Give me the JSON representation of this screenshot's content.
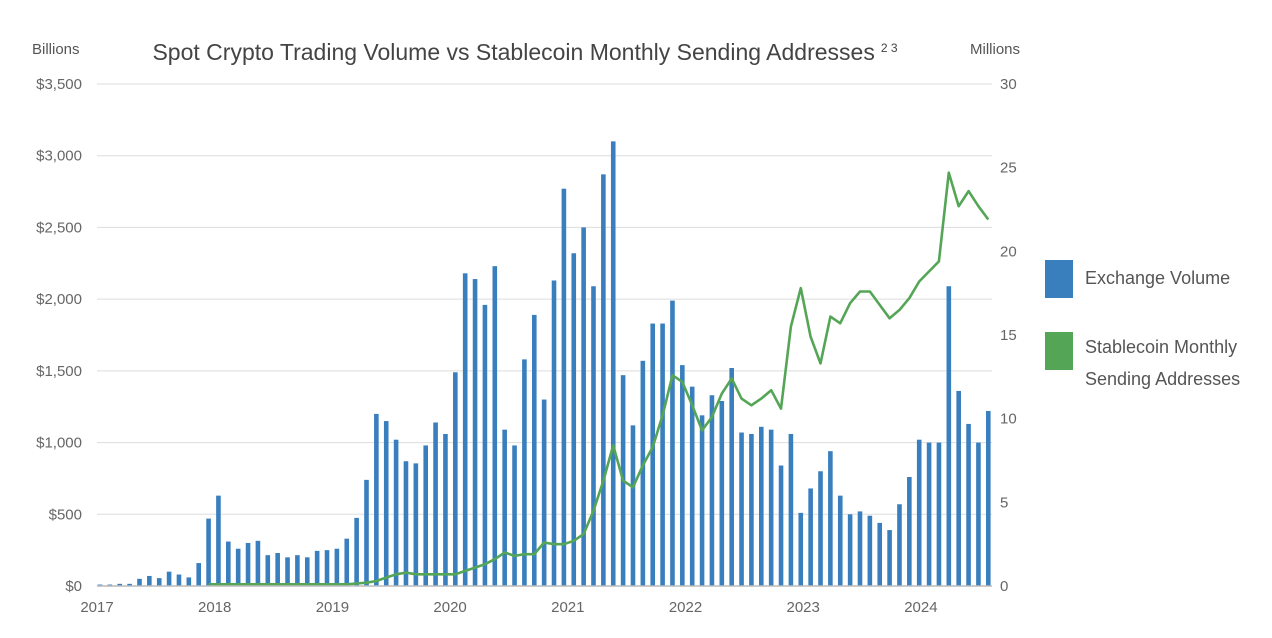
{
  "chart_data": {
    "type": "bar+line",
    "title": "Spot Crypto Trading Volume vs Stablecoin Monthly Sending Addresses",
    "title_superscript": "2 3",
    "left_axis": {
      "unit_label": "Billions",
      "ylim": [
        0,
        3500
      ],
      "ticks": [
        "$0",
        "$500",
        "$1,000",
        "$1,500",
        "$2,000",
        "$2,500",
        "$3,000",
        "$3,500"
      ],
      "tick_values": [
        0,
        500,
        1000,
        1500,
        2000,
        2500,
        3000,
        3500
      ]
    },
    "right_axis": {
      "unit_label": "Millions",
      "ylim": [
        0,
        30
      ],
      "ticks": [
        "0",
        "5",
        "10",
        "15",
        "20",
        "25",
        "30"
      ],
      "tick_values": [
        0,
        5,
        10,
        15,
        20,
        25,
        30
      ]
    },
    "x_tick_labels": [
      "2017",
      "2018",
      "2019",
      "2020",
      "2021",
      "2022",
      "2023",
      "2024"
    ],
    "x_start": "2017-01",
    "grid": true,
    "legend_position": "right",
    "colors": {
      "bar": "#3a7fbd",
      "line": "#55a557",
      "grid": "#dddddd"
    },
    "series": [
      {
        "name": "Exchange Volume",
        "type": "bar",
        "axis": "left",
        "values": [
          10,
          10,
          15,
          15,
          50,
          70,
          55,
          100,
          80,
          60,
          160,
          470,
          630,
          310,
          260,
          300,
          315,
          215,
          230,
          200,
          215,
          200,
          245,
          250,
          260,
          330,
          475,
          740,
          1200,
          1150,
          1020,
          870,
          855,
          980,
          1140,
          1060,
          1490,
          2180,
          2140,
          1960,
          2230,
          1090,
          980,
          1580,
          1890,
          1300,
          2130,
          2770,
          2320,
          2500,
          2090,
          2870,
          3100,
          1470,
          1120,
          1570,
          1830,
          1830,
          1990,
          1540,
          1390,
          1190,
          1330,
          1290,
          1520,
          1070,
          1060,
          1110,
          1090,
          840,
          1060,
          510,
          680,
          800,
          940,
          630,
          500,
          520,
          490,
          440,
          390,
          570,
          760,
          1020,
          1000,
          1000,
          2090,
          1360,
          1130,
          1000,
          1220
        ]
      },
      {
        "name": "Stablecoin Monthly Sending Addresses",
        "type": "line",
        "axis": "right",
        "values": [
          null,
          null,
          null,
          null,
          null,
          null,
          null,
          null,
          null,
          null,
          null,
          0.1,
          0.1,
          0.1,
          0.1,
          0.1,
          0.1,
          0.1,
          0.1,
          0.1,
          0.1,
          0.1,
          0.1,
          0.1,
          0.1,
          0.1,
          0.15,
          0.2,
          0.3,
          0.5,
          0.7,
          0.8,
          0.7,
          0.7,
          0.7,
          0.7,
          0.7,
          0.9,
          1.1,
          1.3,
          1.6,
          2.0,
          1.8,
          1.9,
          1.9,
          2.6,
          2.5,
          2.5,
          2.7,
          3.1,
          4.5,
          6.3,
          8.4,
          6.3,
          5.9,
          7.2,
          8.3,
          10.2,
          12.6,
          12.2,
          10.8,
          9.3,
          10.1,
          11.5,
          12.4,
          11.2,
          10.8,
          11.2,
          11.7,
          10.6,
          15.5,
          17.8,
          14.9,
          13.3,
          16.1,
          15.7,
          16.9,
          17.6,
          17.6,
          16.8,
          16.0,
          16.5,
          17.2,
          18.2,
          18.8,
          19.4,
          24.7,
          22.7,
          23.6,
          22.7,
          21.9
        ]
      }
    ]
  }
}
